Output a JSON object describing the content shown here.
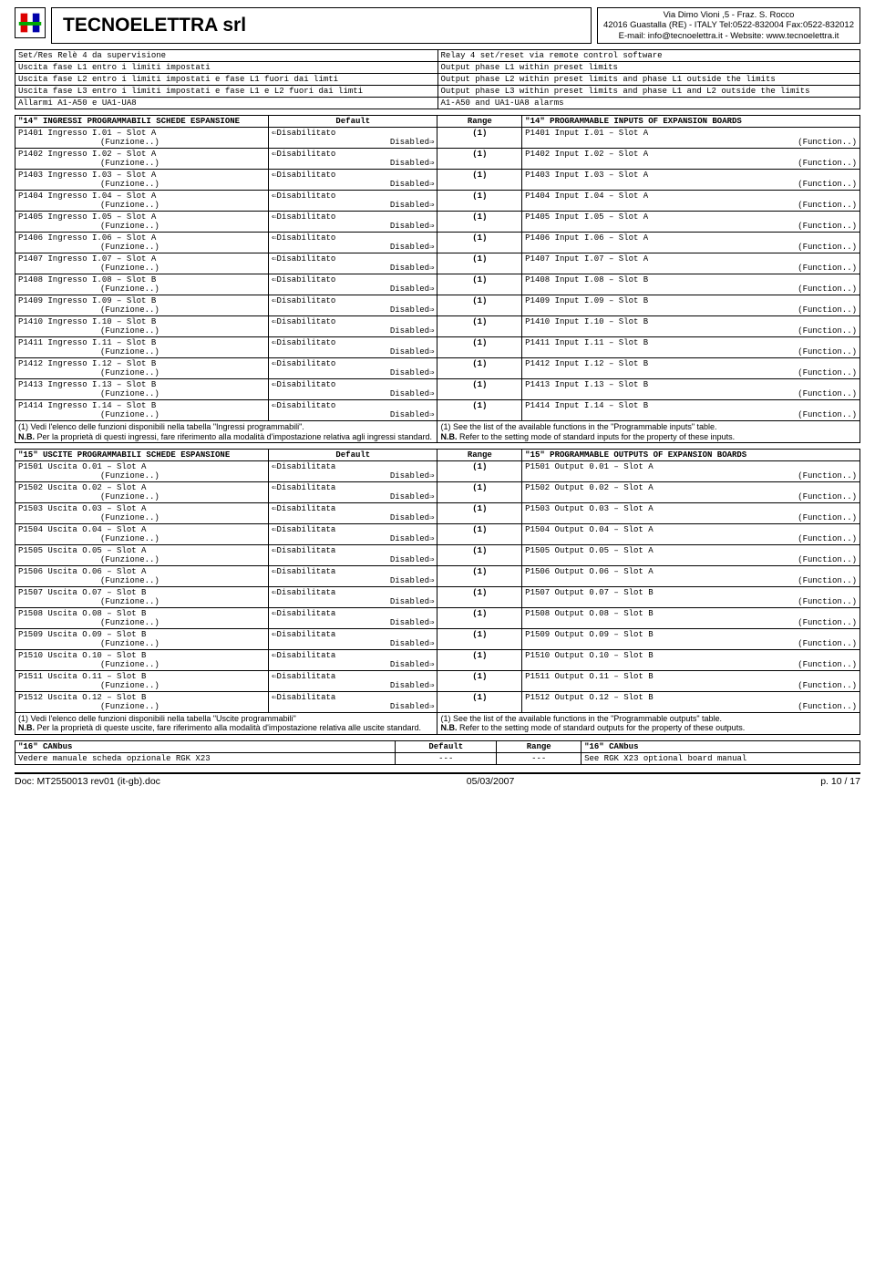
{
  "header": {
    "company": "TECNOELETTRA srl",
    "addr1": "Via Dimo Vioni ,5 -  Fraz. S. Rocco",
    "addr2": "42016 Guastalla (RE) - ITALY Tel:0522-832004 Fax:0522-832012",
    "addr3": "E-mail: info@tecnoelettra.it   -   Website: www.tecnoelettra.it"
  },
  "topRows": [
    [
      "Set/Res Relè 4 da supervisione",
      "Relay 4 set/reset via remote control software"
    ],
    [
      "Uscita fase L1 entro i limiti impostati",
      "Output phase L1 within preset limits"
    ],
    [
      "Uscita fase L2 entro i limiti impostati e fase L1 fuori dai limti",
      "Output phase L2 within preset limits and phase L1 outside the limits"
    ],
    [
      "Uscita fase L3 entro i limiti impostati e fase L1 e L2 fuori dai limti",
      "Output phase L3 within preset limits and phase L1 and L2 outside the limits"
    ],
    [
      "Allarmi A1-A50 e UA1-UA8",
      "A1-A50 and UA1-UA8 alarms"
    ]
  ],
  "section14": {
    "hItalian": "\"14\" INGRESSI PROGRAMMABILI SCHEDE ESPANSIONE",
    "hDefault": "Default",
    "hRange": "Range",
    "hEnglish": "\"14\" PROGRAMMABLE INPUTS OF EXPANSION BOARDS",
    "defLeft": "⇐Disabilitato",
    "defRight": "Disabled⇒",
    "funzione": "(Funzione..)",
    "function": "(Function..)",
    "rows": [
      [
        "P1401 Ingresso I.01 – Slot A",
        "(1)",
        "P1401 Input I.01 – Slot A"
      ],
      [
        "P1402 Ingresso I.02 – Slot A",
        "(1)",
        "P1402 Input I.02 – Slot A"
      ],
      [
        "P1403 Ingresso I.03 – Slot A",
        "(1)",
        "P1403 Input I.03 – Slot A"
      ],
      [
        "P1404 Ingresso I.04 – Slot A",
        "(1)",
        "P1404 Input I.04 – Slot A"
      ],
      [
        "P1405 Ingresso I.05 – Slot A",
        "(1)",
        "P1405 Input I.05 – Slot A"
      ],
      [
        "P1406 Ingresso I.06 – Slot A",
        "(1)",
        "P1406 Input I.06 – Slot A"
      ],
      [
        "P1407 Ingresso I.07 – Slot A",
        "(1)",
        "P1407 Input I.07 – Slot A"
      ],
      [
        "P1408 Ingresso I.08 – Slot B",
        "(1)",
        "P1408 Input I.08 – Slot B"
      ],
      [
        "P1409 Ingresso I.09 – Slot B",
        "(1)",
        "P1409 Input I.09 – Slot B"
      ],
      [
        "P1410 Ingresso I.10 – Slot B",
        "(1)",
        "P1410 Input I.10 – Slot B"
      ],
      [
        "P1411 Ingresso I.11 – Slot B",
        "(1)",
        "P1411 Input I.11 – Slot B"
      ],
      [
        "P1412 Ingresso I.12 – Slot B",
        "(1)",
        "P1412 Input I.12 – Slot B"
      ],
      [
        "P1413 Ingresso I.13 – Slot B",
        "(1)",
        "P1413 Input I.13 – Slot B"
      ],
      [
        "P1414 Ingresso I.14 – Slot B",
        "(1)",
        "P1414 Input I.14 – Slot B"
      ]
    ],
    "noteIt": "(1) Vedi l'elenco delle funzioni disponibili nella tabella \"Ingressi programmabili\".",
    "noteItNB": "N.B.  Per la proprietà di questi ingressi, fare riferimento alla modalità d'impostazione relativa agli ingressi standard.",
    "noteEn": "(1) See the list of the available functions in the \"Programmable inputs\" table.",
    "noteEnNB": "N.B. Refer to the setting mode of standard inputs for the property of these inputs."
  },
  "section15": {
    "hItalian": "\"15\" USCITE PROGRAMMABILI SCHEDE ESPANSIONE",
    "hDefault": "Default",
    "hRange": "Range",
    "hEnglish": "\"15\" PROGRAMMABLE OUTPUTS OF EXPANSION BOARDS",
    "defLeft": "⇐Disabilitata",
    "defRight": "Disabled⇒",
    "funzione": "(Funzione..)",
    "function": "(Function..)",
    "rows": [
      [
        "P1501 Uscita O.01 – Slot A",
        "(1)",
        "P1501 Output 0.01 – Slot A"
      ],
      [
        "P1502 Uscita O.02 – Slot A",
        "(1)",
        "P1502 Output 0.02 – Slot A"
      ],
      [
        "P1503 Uscita O.03 – Slot A",
        "(1)",
        "P1503 Output O.03 – Slot A"
      ],
      [
        "P1504 Uscita O.04 – Slot A",
        "(1)",
        "P1504 Output O.04 – Slot A"
      ],
      [
        "P1505 Uscita O.05 – Slot A",
        "(1)",
        "P1505 Output O.05 – Slot A"
      ],
      [
        "P1506 Uscita O.06 – Slot A",
        "(1)",
        "P1506 Output O.06 – Slot A"
      ],
      [
        "P1507 Uscita O.07 – Slot B",
        "(1)",
        "P1507 Output 0.07 – Slot B"
      ],
      [
        "P1508 Uscita O.08 – Slot B",
        "(1)",
        "P1508 Output O.08 – Slot B"
      ],
      [
        "P1509 Uscita O.09 – Slot B",
        "(1)",
        "P1509 Output O.09 – Slot B"
      ],
      [
        "P1510 Uscita O.10 – Slot B",
        "(1)",
        "P1510 Output O.10 – Slot B"
      ],
      [
        "P1511 Uscita O.11 – Slot B",
        "(1)",
        "P1511 Output O.11 – Slot B"
      ],
      [
        "P1512 Uscita O.12 – Slot B",
        "(1)",
        "P1512 Output O.12 – Slot B"
      ]
    ],
    "noteIt": "(1) Vedi l'elenco delle funzioni disponibili nella tabella \"Uscite programmabili\"",
    "noteItNB": "N.B.  Per la proprietà di queste uscite, fare riferimento alla modalità d'impostazione relativa alle uscite standard.",
    "noteEn": "(1) See the list of the available functions in the \"Programmable outputs\" table.",
    "noteEnNB": " N.B. Refer to the setting mode of standard outputs for the property of these outputs."
  },
  "section16": {
    "h1": "\"16\" CANbus",
    "h2": "Default",
    "h3": "Range",
    "h4": "\"16\" CANbus",
    "rowIt": "Vedere manuale scheda opzionale RGK X23",
    "dash": "---",
    "rowEn": "See RGK X23 optional board manual"
  },
  "footer": {
    "doc": "Doc: MT2550013 rev01 (it-gb).doc",
    "date": "05/03/2007",
    "page": "p. 10 / 17"
  }
}
